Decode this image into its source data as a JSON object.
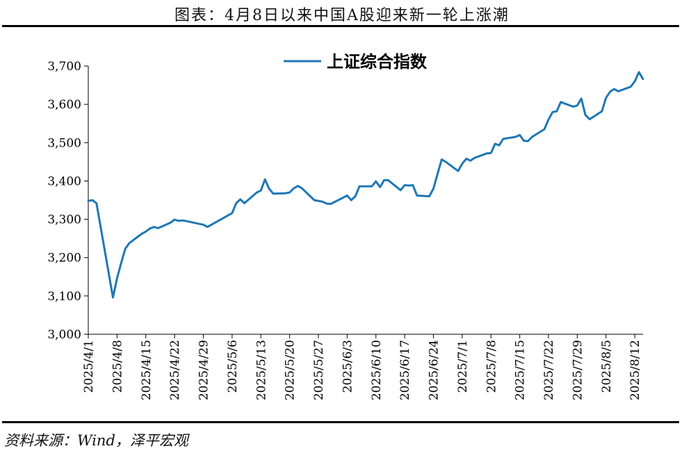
{
  "title": "图表：4月8日以来中国A股迎来新一轮上涨潮",
  "source": "资料来源：Wind，泽平宏观",
  "chart_data": {
    "type": "line",
    "title": "",
    "xlabel": "",
    "ylabel": "",
    "ylim": [
      3000,
      3700
    ],
    "yticks": [
      3000,
      3100,
      3200,
      3300,
      3400,
      3500,
      3600,
      3700
    ],
    "ytick_labels": [
      "3,000",
      "3,100",
      "3,200",
      "3,300",
      "3,400",
      "3,500",
      "3,600",
      "3,700"
    ],
    "xlim": [
      "2025-04-01",
      "2025-08-14"
    ],
    "xticks": [
      "2025-04-01",
      "2025-04-08",
      "2025-04-15",
      "2025-04-22",
      "2025-04-29",
      "2025-05-06",
      "2025-05-13",
      "2025-05-20",
      "2025-05-27",
      "2025-06-03",
      "2025-06-10",
      "2025-06-17",
      "2025-06-24",
      "2025-07-01",
      "2025-07-08",
      "2025-07-15",
      "2025-07-22",
      "2025-07-29",
      "2025-08-05",
      "2025-08-12"
    ],
    "xtick_labels": [
      "2025/4/1",
      "2025/4/8",
      "2025/4/15",
      "2025/4/22",
      "2025/4/29",
      "2025/5/6",
      "2025/5/13",
      "2025/5/20",
      "2025/5/27",
      "2025/6/3",
      "2025/6/10",
      "2025/6/17",
      "2025/6/24",
      "2025/7/1",
      "2025/7/8",
      "2025/7/15",
      "2025/7/22",
      "2025/7/29",
      "2025/8/5",
      "2025/8/12"
    ],
    "grid": false,
    "legend_position": "top-center",
    "color": "#1f77b4",
    "series": [
      {
        "name": "上证综合指数",
        "x": [
          "2025-04-01",
          "2025-04-02",
          "2025-04-03",
          "2025-04-07",
          "2025-04-08",
          "2025-04-09",
          "2025-04-10",
          "2025-04-11",
          "2025-04-14",
          "2025-04-15",
          "2025-04-16",
          "2025-04-17",
          "2025-04-18",
          "2025-04-21",
          "2025-04-22",
          "2025-04-23",
          "2025-04-24",
          "2025-04-25",
          "2025-04-28",
          "2025-04-29",
          "2025-04-30",
          "2025-05-06",
          "2025-05-07",
          "2025-05-08",
          "2025-05-09",
          "2025-05-12",
          "2025-05-13",
          "2025-05-14",
          "2025-05-15",
          "2025-05-16",
          "2025-05-19",
          "2025-05-20",
          "2025-05-21",
          "2025-05-22",
          "2025-05-23",
          "2025-05-26",
          "2025-05-27",
          "2025-05-28",
          "2025-05-29",
          "2025-05-30",
          "2025-06-03",
          "2025-06-04",
          "2025-06-05",
          "2025-06-06",
          "2025-06-09",
          "2025-06-10",
          "2025-06-11",
          "2025-06-12",
          "2025-06-13",
          "2025-06-16",
          "2025-06-17",
          "2025-06-18",
          "2025-06-19",
          "2025-06-20",
          "2025-06-23",
          "2025-06-24",
          "2025-06-25",
          "2025-06-26",
          "2025-06-27",
          "2025-06-30",
          "2025-07-01",
          "2025-07-02",
          "2025-07-03",
          "2025-07-04",
          "2025-07-07",
          "2025-07-08",
          "2025-07-09",
          "2025-07-10",
          "2025-07-11",
          "2025-07-14",
          "2025-07-15",
          "2025-07-16",
          "2025-07-17",
          "2025-07-18",
          "2025-07-21",
          "2025-07-22",
          "2025-07-23",
          "2025-07-24",
          "2025-07-25",
          "2025-07-28",
          "2025-07-29",
          "2025-07-30",
          "2025-07-31",
          "2025-08-01",
          "2025-08-04",
          "2025-08-05",
          "2025-08-06",
          "2025-08-07",
          "2025-08-08",
          "2025-08-11",
          "2025-08-12",
          "2025-08-13",
          "2025-08-14"
        ],
        "values": [
          3348,
          3350,
          3342,
          3096,
          3146,
          3186,
          3223,
          3238,
          3262,
          3268,
          3276,
          3280,
          3277,
          3291,
          3299,
          3296,
          3297,
          3295,
          3288,
          3286,
          3280,
          3316,
          3342,
          3352,
          3342,
          3370,
          3375,
          3404,
          3380,
          3367,
          3368,
          3370,
          3381,
          3387,
          3381,
          3350,
          3348,
          3346,
          3341,
          3340,
          3362,
          3350,
          3360,
          3386,
          3386,
          3399,
          3384,
          3402,
          3402,
          3376,
          3389,
          3388,
          3389,
          3362,
          3360,
          3380,
          3418,
          3456,
          3450,
          3426,
          3445,
          3458,
          3453,
          3460,
          3472,
          3473,
          3497,
          3493,
          3510,
          3515,
          3520,
          3505,
          3504,
          3515,
          3535,
          3560,
          3580,
          3582,
          3606,
          3594,
          3597,
          3615,
          3572,
          3561,
          3582,
          3617,
          3633,
          3640,
          3634,
          3646,
          3660,
          3684,
          3666
        ]
      }
    ]
  }
}
